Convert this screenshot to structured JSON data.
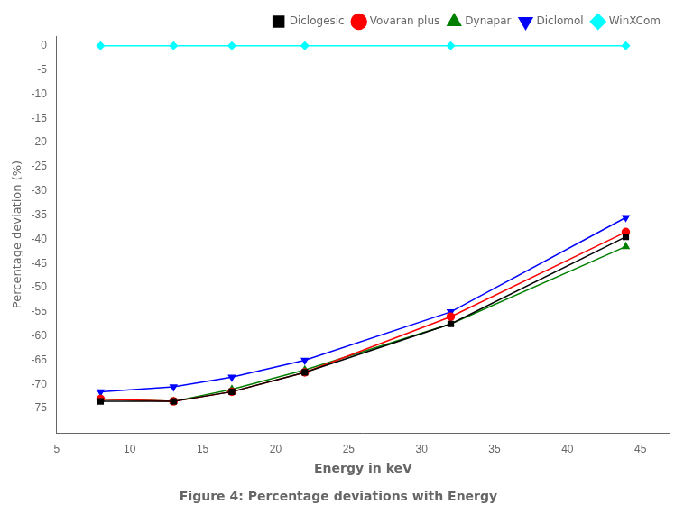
{
  "chart_data": {
    "type": "line",
    "title": "Figure 4: Percentage deviations with Energy",
    "x_label": "Energy in keV",
    "y_label": "Percentage deviation (%)",
    "x": [
      8,
      13,
      17,
      22,
      32,
      44
    ],
    "series": [
      {
        "name": "Diclogesic",
        "color": "black",
        "marker": "square",
        "values": [
          -73.5,
          -73.5,
          -71.5,
          -67.5,
          -57.5,
          -39.5
        ]
      },
      {
        "name": "Vovaran plus",
        "color": "red",
        "marker": "circle",
        "values": [
          -73.0,
          -73.5,
          -71.5,
          -67.5,
          -56.0,
          -38.5
        ]
      },
      {
        "name": "Dynapar",
        "color": "green",
        "marker": "triangle_up",
        "values": [
          -73.0,
          -73.5,
          -71.0,
          -67.0,
          -57.5,
          -41.5
        ]
      },
      {
        "name": "Diclomol",
        "color": "blue",
        "marker": "triangle_down",
        "values": [
          -71.5,
          -70.5,
          -68.5,
          -65.0,
          -55.0,
          -35.5
        ]
      },
      {
        "name": "WinXCom",
        "color": "cyan",
        "marker": "diamond",
        "values": [
          0.0,
          0.0,
          0.0,
          0.0,
          0.0,
          0.0
        ]
      }
    ],
    "xlim": [
      5,
      47
    ],
    "ylim": [
      -80,
      2
    ],
    "xticks": [
      5,
      10,
      15,
      20,
      25,
      30,
      35,
      40,
      45
    ],
    "yticks": [
      0,
      -5,
      -10,
      -15,
      -20,
      -25,
      -30,
      -35,
      -40,
      -45,
      -50,
      -55,
      -60,
      -65,
      -70,
      -75
    ],
    "grid": false,
    "legend": "upper right"
  }
}
